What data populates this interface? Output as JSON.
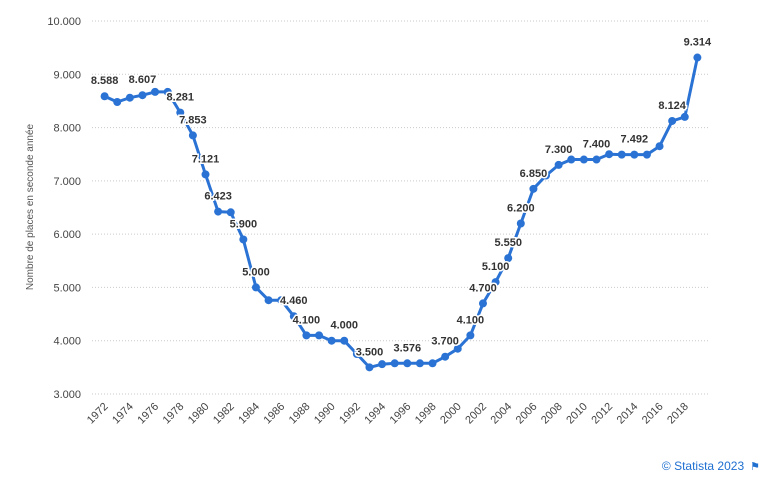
{
  "chart_data": {
    "type": "line",
    "ylabel": "Nombre de places en seconde année",
    "xlabel": "",
    "ylim": [
      3000,
      10000
    ],
    "y_ticks": [
      3000,
      4000,
      5000,
      6000,
      7000,
      8000,
      9000,
      10000
    ],
    "y_tick_labels": [
      "3.000",
      "4.000",
      "5.000",
      "6.000",
      "7.000",
      "8.000",
      "9.000",
      "10.000"
    ],
    "x_range": [
      1971,
      2020
    ],
    "x_ticks": [
      1972,
      1974,
      1976,
      1978,
      1980,
      1982,
      1984,
      1986,
      1988,
      1990,
      1992,
      1994,
      1996,
      1998,
      2000,
      2002,
      2004,
      2006,
      2008,
      2010,
      2012,
      2014,
      2016,
      2018
    ],
    "x_tick_labels": [
      "1972",
      "1974",
      "1976",
      "1978",
      "1980",
      "1982",
      "1984",
      "1986",
      "1988",
      "1990",
      "1992",
      "1994",
      "1996",
      "1998",
      "2000",
      "2002",
      "2004",
      "2006",
      "2008",
      "2010",
      "2012",
      "2014",
      "2016",
      "2018"
    ],
    "grid": "horizontal dotted",
    "line_color": "#2a73d4",
    "x": [
      1972,
      1973,
      1974,
      1975,
      1976,
      1977,
      1978,
      1979,
      1980,
      1981,
      1982,
      1983,
      1984,
      1985,
      1986,
      1987,
      1988,
      1989,
      1990,
      1991,
      1992,
      1993,
      1994,
      1995,
      1996,
      1997,
      1998,
      1999,
      2000,
      2001,
      2002,
      2003,
      2004,
      2005,
      2006,
      2007,
      2008,
      2009,
      2010,
      2011,
      2012,
      2013,
      2014,
      2015,
      2016,
      2017,
      2018,
      2019
    ],
    "values": [
      8588,
      8480,
      8560,
      8607,
      8670,
      8670,
      8281,
      7853,
      7121,
      6423,
      6410,
      5900,
      5000,
      4760,
      4760,
      4460,
      4100,
      4100,
      4000,
      4000,
      3750,
      3500,
      3560,
      3576,
      3576,
      3576,
      3576,
      3700,
      3850,
      4100,
      4700,
      5100,
      5550,
      6200,
      6850,
      7100,
      7300,
      7400,
      7400,
      7400,
      7500,
      7492,
      7492,
      7492,
      7650,
      8124,
      8200,
      9314
    ],
    "data_labels": [
      {
        "x": 1972,
        "text": "8.588"
      },
      {
        "x": 1975,
        "text": "8.607"
      },
      {
        "x": 1978,
        "text": "8.281"
      },
      {
        "x": 1979,
        "text": "7.853"
      },
      {
        "x": 1980,
        "text": "7.121"
      },
      {
        "x": 1981,
        "text": "6.423"
      },
      {
        "x": 1983,
        "text": "5.900"
      },
      {
        "x": 1984,
        "text": "5.000"
      },
      {
        "x": 1987,
        "text": "4.460"
      },
      {
        "x": 1988,
        "text": "4.100"
      },
      {
        "x": 1991,
        "text": "4.000"
      },
      {
        "x": 1993,
        "text": "3.500"
      },
      {
        "x": 1996,
        "text": "3.576"
      },
      {
        "x": 1999,
        "text": "3.700"
      },
      {
        "x": 2001,
        "text": "4.100"
      },
      {
        "x": 2002,
        "text": "4.700"
      },
      {
        "x": 2003,
        "text": "5.100"
      },
      {
        "x": 2004,
        "text": "5.550"
      },
      {
        "x": 2005,
        "text": "6.200"
      },
      {
        "x": 2006,
        "text": "6.850"
      },
      {
        "x": 2008,
        "text": "7.300"
      },
      {
        "x": 2011,
        "text": "7.400"
      },
      {
        "x": 2014,
        "text": "7.492"
      },
      {
        "x": 2017,
        "text": "8.124"
      },
      {
        "x": 2019,
        "text": "9.314"
      }
    ]
  },
  "footer": {
    "credit": "© Statista 2023",
    "flag_icon": "flag-icon"
  }
}
